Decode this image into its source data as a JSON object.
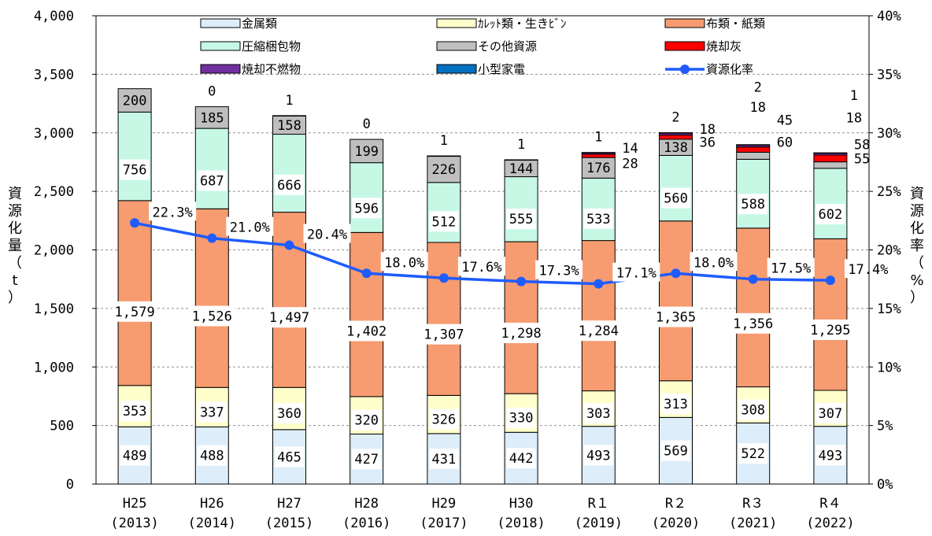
{
  "chart_data": {
    "type": "bar",
    "categories": [
      [
        "H25",
        "(2013)"
      ],
      [
        "H26",
        "(2014)"
      ],
      [
        "H27",
        "(2015)"
      ],
      [
        "H28",
        "(2016)"
      ],
      [
        "H29",
        "(2017)"
      ],
      [
        "H30",
        "(2018)"
      ],
      [
        "R１",
        "(2019)"
      ],
      [
        "R２",
        "(2020)"
      ],
      [
        "R３",
        "(2021)"
      ],
      [
        "R４",
        "(2022)"
      ]
    ],
    "ylabel": "資源化量（t）",
    "y2label": "資源化率（%）",
    "ylim": [
      0,
      4000
    ],
    "yticks": [
      "0",
      "500",
      "1,000",
      "1,500",
      "2,000",
      "2,500",
      "3,000",
      "3,500",
      "4,000"
    ],
    "y2lim": [
      0,
      40
    ],
    "y2ticks": [
      "0%",
      "5%",
      "10%",
      "15%",
      "20%",
      "25%",
      "30%",
      "35%",
      "40%"
    ],
    "legend_position": "top",
    "series": [
      {
        "name": "金属類",
        "color": "#DDEEFA",
        "values": [
          489,
          488,
          465,
          427,
          431,
          442,
          493,
          569,
          522,
          493
        ]
      },
      {
        "name": "ｶﾚｯﾄ類・生きﾋﾞﾝ",
        "color": "#FFFFCC",
        "values": [
          353,
          337,
          360,
          320,
          326,
          330,
          303,
          313,
          308,
          307
        ]
      },
      {
        "name": "布類・紙類",
        "color": "#F79B70",
        "values": [
          1579,
          1526,
          1497,
          1402,
          1307,
          1298,
          1284,
          1365,
          1356,
          1295
        ]
      },
      {
        "name": "圧縮梱包物",
        "color": "#C6F8E5",
        "values": [
          756,
          687,
          666,
          596,
          512,
          555,
          533,
          560,
          588,
          602
        ]
      },
      {
        "name": "その他資源",
        "color": "#BFBFBF",
        "values": [
          200,
          185,
          158,
          199,
          226,
          144,
          176,
          138,
          60,
          55
        ]
      },
      {
        "name": "焼却灰",
        "color": "#FF0000",
        "values": [
          0,
          0,
          0,
          0,
          0,
          0,
          28,
          36,
          45,
          58
        ]
      },
      {
        "name": "焼却不燃物",
        "color": "#7030A0",
        "values": [
          0,
          0,
          0,
          0,
          0,
          0,
          14,
          18,
          18,
          18
        ]
      },
      {
        "name": "小型家電",
        "color": "#0070C0",
        "values": [
          0,
          0,
          1,
          0,
          1,
          1,
          1,
          2,
          2,
          1
        ]
      }
    ],
    "line_series": {
      "name": "資源化率",
      "color": "#1F5CFF",
      "values": [
        22.3,
        21.0,
        20.4,
        18.0,
        17.6,
        17.3,
        17.1,
        18.0,
        17.5,
        17.4
      ],
      "labels": [
        "22.3%",
        "21.0%",
        "20.4%",
        "18.0%",
        "17.6%",
        "17.3%",
        "17.1%",
        "18.0%",
        "17.5%",
        "17.4%"
      ]
    },
    "data_labels": {
      "metal": [
        "489",
        "488",
        "465",
        "427",
        "431",
        "442",
        "493",
        "569",
        "522",
        "493"
      ],
      "cullet": [
        "353",
        "337",
        "360",
        "320",
        "326",
        "330",
        "303",
        "313",
        "308",
        "307"
      ],
      "cloth_paper": [
        "1,579",
        "1,526",
        "1,497",
        "1,402",
        "1,307",
        "1,298",
        "1,284",
        "1,365",
        "1,356",
        "1,295"
      ],
      "compressed": [
        "756",
        "687",
        "666",
        "596",
        "512",
        "555",
        "533",
        "560",
        "588",
        "602"
      ],
      "other": [
        "200",
        "185",
        "158",
        "199",
        "226",
        "144",
        "176",
        "138",
        "60",
        "55"
      ],
      "ash": [
        "",
        "",
        "",
        "",
        "",
        "",
        "28",
        "36",
        "45",
        "58"
      ],
      "incombustible": [
        "",
        "",
        "",
        "",
        "",
        "",
        "14",
        "18",
        "18",
        "18"
      ],
      "small_appliance": [
        "",
        "0",
        "1",
        "0",
        "1",
        "1",
        "1",
        "2",
        "2",
        "1"
      ]
    }
  }
}
